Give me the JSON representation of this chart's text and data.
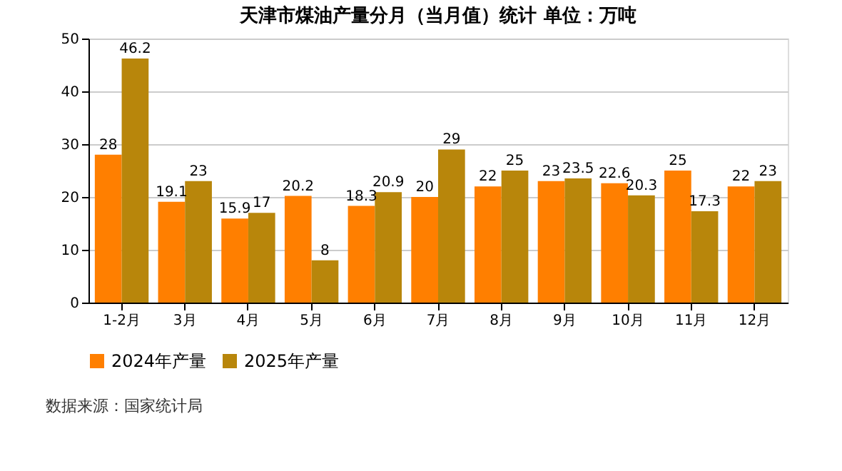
{
  "chart_data": {
    "type": "bar",
    "title": "天津市煤油产量分月（当月值）统计  单位：万吨",
    "categories": [
      "1-2月",
      "3月",
      "4月",
      "5月",
      "6月",
      "7月",
      "8月",
      "9月",
      "10月",
      "11月",
      "12月"
    ],
    "series": [
      {
        "name": "2024年产量",
        "color": "#ff7f00",
        "values": [
          28,
          19.1,
          15.9,
          20.2,
          18.3,
          20,
          22,
          23,
          22.6,
          25,
          22
        ]
      },
      {
        "name": "2025年产量",
        "color": "#b8860b",
        "values": [
          46.2,
          23,
          17,
          8,
          20.9,
          29,
          25,
          23.5,
          20.3,
          17.3,
          23
        ]
      }
    ],
    "ylim": [
      0,
      50
    ],
    "yticks": [
      0,
      10,
      20,
      30,
      40,
      50
    ],
    "grid": "y",
    "legend": "bottom",
    "data_labels": true,
    "annotations": [
      "数据来源：国家统计局"
    ]
  }
}
